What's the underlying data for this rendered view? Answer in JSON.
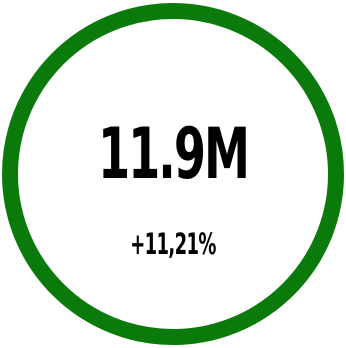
{
  "kpi": {
    "value": "11.9M",
    "change": "+11,21%",
    "ring_color": "#0a7a0a",
    "ring_fill_fraction": 1.0
  }
}
